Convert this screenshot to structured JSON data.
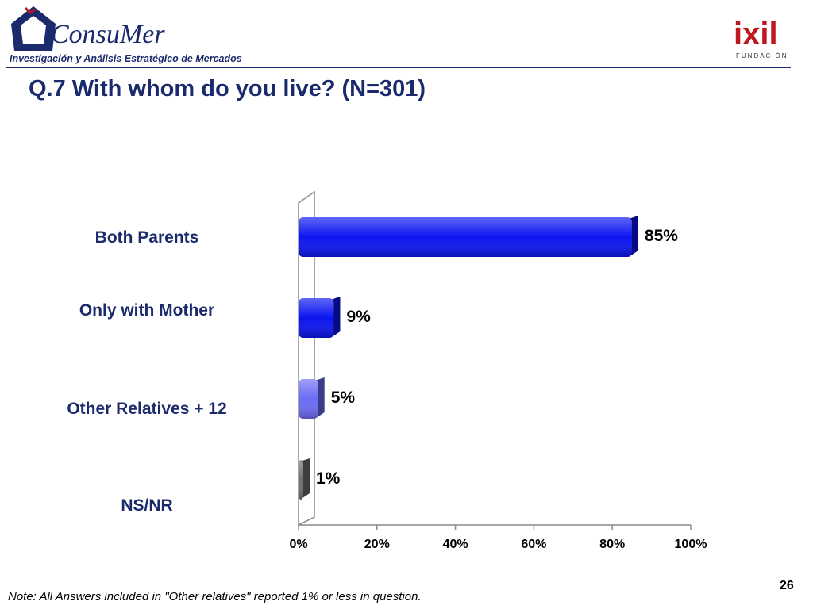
{
  "header": {
    "logo_left_text": "ConsuMer",
    "logo_left_tagline": "Investigación y Análisis Estratégico de Mercados",
    "logo_right_text": "ixil",
    "logo_right_sub": "FUNDACIÓN"
  },
  "title": "Q.7 With whom do you live? (N=301)",
  "chart_data": {
    "type": "bar",
    "orientation": "horizontal",
    "categories": [
      "Both Parents",
      "Only with Mother",
      "Other Relatives + 12",
      "NS/NR"
    ],
    "values": [
      85,
      9,
      5,
      1
    ],
    "value_labels": [
      "85%",
      "9%",
      "5%",
      "1%"
    ],
    "bar_colors": [
      "#0a14f0",
      "#0a14f0",
      "#6b6bf5",
      "#6e6e6e"
    ],
    "xlim": [
      0,
      100
    ],
    "xticks": [
      "0%",
      "20%",
      "40%",
      "60%",
      "80%",
      "100%"
    ],
    "xlabel": "",
    "ylabel": "",
    "grid": false
  },
  "note": "Note: All Answers included in \"Other relatives\" reported 1% or less in question.",
  "page_number": "26"
}
